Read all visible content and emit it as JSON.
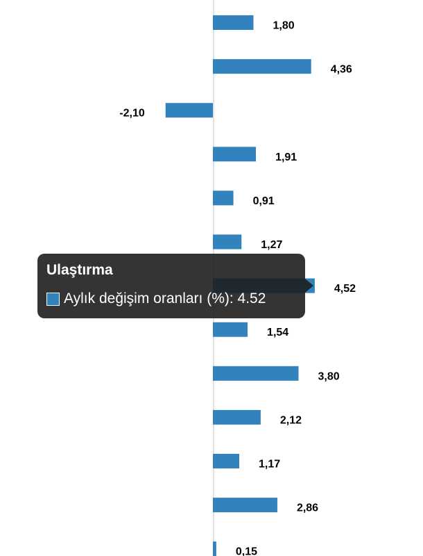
{
  "chart_data": {
    "type": "bar",
    "orientation": "horizontal",
    "categories": [
      "",
      "",
      "",
      "",
      "",
      "",
      "Ulaştırma",
      "",
      "",
      "",
      "",
      "",
      ""
    ],
    "series": [
      {
        "name": "Aylık değişim oranları (%)",
        "color": "#3182bd",
        "values": [
          1.8,
          4.36,
          -2.1,
          1.91,
          0.91,
          1.27,
          4.52,
          1.54,
          3.8,
          2.12,
          1.17,
          2.86,
          0.15
        ]
      }
    ],
    "data_labels": [
      "1,80",
      "4,36",
      "-2,10",
      "1,91",
      "0,91",
      "1,27",
      "4,52",
      "1,54",
      "3,80",
      "2,12",
      "1,17",
      "2,86",
      "0,15"
    ],
    "grid": false
  },
  "tooltip": {
    "title": "Ulaştırma",
    "series_label": "Aylık değişim oranları (%)",
    "separator": ": ",
    "value": "4.52",
    "swatch_color": "#3182bd"
  },
  "colors": {
    "bar": "#3182bd",
    "zero_line": "#d9d9d9",
    "tooltip_bg": "#1e1e1e"
  }
}
